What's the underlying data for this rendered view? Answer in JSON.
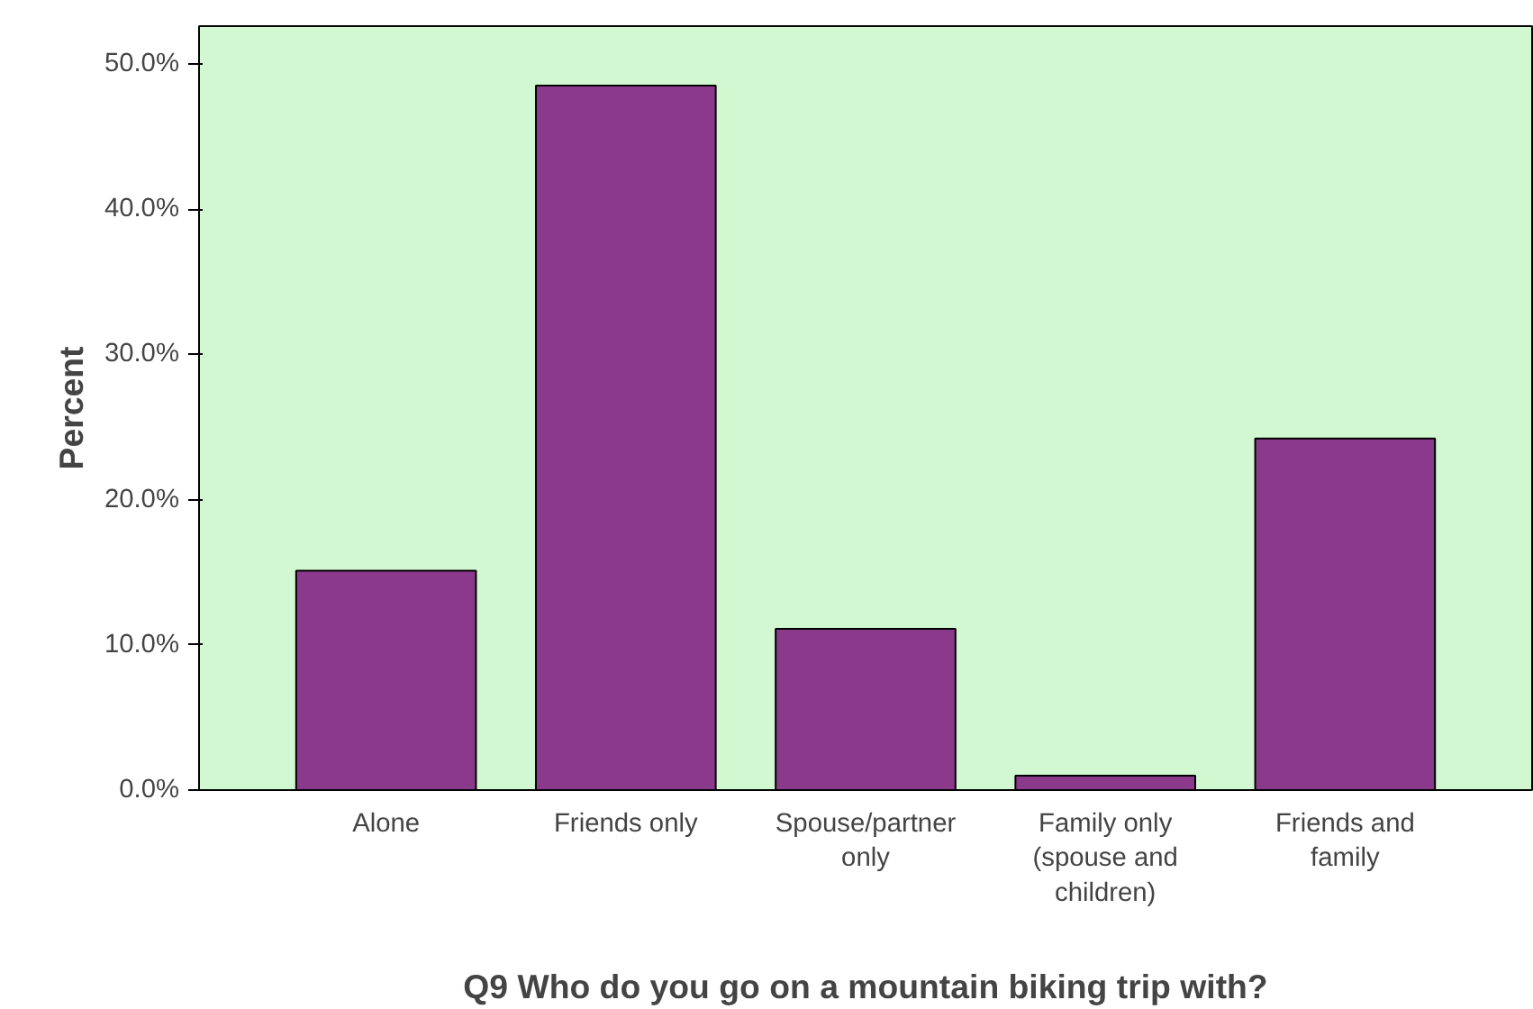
{
  "chart_data": {
    "type": "bar",
    "xlabel": "Q9 Who do you go on a mountain biking trip with?",
    "ylabel": "Percent",
    "categories": [
      "Alone",
      "Friends only",
      "Spouse/partner\nonly",
      "Family only\n(spouse and\nchildren)",
      "Friends and\nfamily"
    ],
    "values": [
      15.1,
      48.5,
      11.1,
      1.0,
      24.2
    ],
    "color": "#8b3a8b",
    "ylim": [
      0,
      52.6
    ],
    "yticks": [
      {
        "value": 0,
        "label": "0.0%"
      },
      {
        "value": 10,
        "label": "10.0%"
      },
      {
        "value": 20,
        "label": "20.0%"
      },
      {
        "value": 30,
        "label": "30.0%"
      },
      {
        "value": 40,
        "label": "40.0%"
      },
      {
        "value": 50,
        "label": "50.0%"
      }
    ],
    "grid": false
  }
}
